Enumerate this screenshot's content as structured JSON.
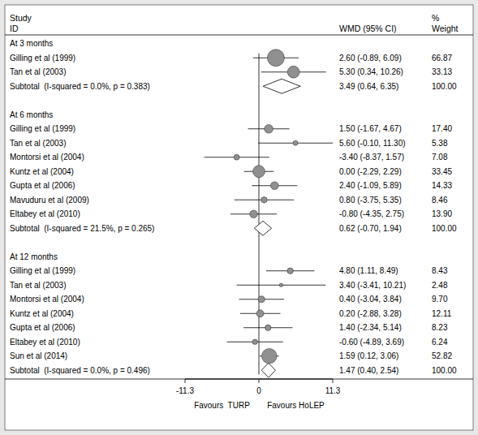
{
  "chart_data": {
    "type": "forest",
    "header_study": "Study",
    "header_id": "ID",
    "header_percent": "%",
    "col_wmd_label": "WMD (95% CI)",
    "col_weight_label": "Weight",
    "xlim": [
      -11.3,
      11.3
    ],
    "xticks": [
      -11.3,
      0,
      11.3
    ],
    "reference_line": 0,
    "xlabel_left": "Favours  TURP",
    "xlabel_right": "Favours HoLEP",
    "dot_color": "#909090",
    "diamond_color": "#ffffff",
    "diamond_edge_color": "#000000",
    "background_color": "#e8e8e8",
    "plot_bg_color": "#ffffff",
    "groups": [
      {
        "label": "At 3 months",
        "studies": [
          {
            "name": "Gilling et al (1999)",
            "wmd": 2.6,
            "ci_low": -0.89,
            "ci_high": 6.09,
            "weight": 66.87,
            "wmd_label": "2.60 (-0.89, 6.09)",
            "weight_label": "66.87"
          },
          {
            "name": "Tan et al (2003)",
            "wmd": 5.3,
            "ci_low": 0.34,
            "ci_high": 10.26,
            "weight": 33.13,
            "wmd_label": "5.30 (0.34, 10.26)",
            "weight_label": "33.13"
          }
        ],
        "subtotal": {
          "label": "Subtotal  (I-squared = 0.0%, p = 0.383)",
          "wmd": 3.49,
          "ci_low": 0.64,
          "ci_high": 6.35,
          "weight": 100,
          "wmd_label": "3.49 (0.64, 6.35)",
          "weight_label": "100.00"
        }
      },
      {
        "label": "At 6 months",
        "studies": [
          {
            "name": "Gilling et al (1999)",
            "wmd": 1.5,
            "ci_low": -1.67,
            "ci_high": 4.67,
            "weight": 17.4,
            "wmd_label": "1.50 (-1.67, 4.67)",
            "weight_label": "17.40"
          },
          {
            "name": "Tan et al (2003)",
            "wmd": 5.6,
            "ci_low": -0.1,
            "ci_high": 11.3,
            "weight": 5.38,
            "wmd_label": "5.60 (-0.10, 11.30)",
            "weight_label": "5.38"
          },
          {
            "name": "Montorsi et al (2004)",
            "wmd": -3.4,
            "ci_low": -8.37,
            "ci_high": 1.57,
            "weight": 7.08,
            "wmd_label": "-3.40 (-8.37, 1.57)",
            "weight_label": "7.08"
          },
          {
            "name": "Kuntz et al (2004)",
            "wmd": 0.0,
            "ci_low": -2.29,
            "ci_high": 2.29,
            "weight": 33.45,
            "wmd_label": "0.00 (-2.29, 2.29)",
            "weight_label": "33.45"
          },
          {
            "name": "Gupta et al (2006)",
            "wmd": 2.4,
            "ci_low": -1.09,
            "ci_high": 5.89,
            "weight": 14.33,
            "wmd_label": "2.40 (-1.09, 5.89)",
            "weight_label": "14.33"
          },
          {
            "name": "Mavuduru et al (2009)",
            "wmd": 0.8,
            "ci_low": -3.75,
            "ci_high": 5.35,
            "weight": 8.46,
            "wmd_label": "0.80 (-3.75, 5.35)",
            "weight_label": "8.46"
          },
          {
            "name": "Eltabey et al (2010)",
            "wmd": -0.8,
            "ci_low": -4.35,
            "ci_high": 2.75,
            "weight": 13.9,
            "wmd_label": "-0.80 (-4.35, 2.75)",
            "weight_label": "13.90"
          }
        ],
        "subtotal": {
          "label": "Subtotal  (I-squared = 21.5%, p = 0.265)",
          "wmd": 0.62,
          "ci_low": -0.7,
          "ci_high": 1.94,
          "weight": 100,
          "wmd_label": "0.62 (-0.70, 1.94)",
          "weight_label": "100.00"
        }
      },
      {
        "label": "At 12 months",
        "studies": [
          {
            "name": "Gilling et al (1999)",
            "wmd": 4.8,
            "ci_low": 1.11,
            "ci_high": 8.49,
            "weight": 8.43,
            "wmd_label": "4.80 (1.11, 8.49)",
            "weight_label": "8.43"
          },
          {
            "name": "Tan et al (2003)",
            "wmd": 3.4,
            "ci_low": -3.41,
            "ci_high": 10.21,
            "weight": 2.48,
            "wmd_label": "3.40 (-3.41, 10.21)",
            "weight_label": "2.48"
          },
          {
            "name": "Montorsi et al (2004)",
            "wmd": 0.4,
            "ci_low": -3.04,
            "ci_high": 3.84,
            "weight": 9.7,
            "wmd_label": "0.40 (-3.04, 3.84)",
            "weight_label": "9.70"
          },
          {
            "name": "Kuntz et al (2004)",
            "wmd": 0.2,
            "ci_low": -2.88,
            "ci_high": 3.28,
            "weight": 12.11,
            "wmd_label": "0.20 (-2.88, 3.28)",
            "weight_label": "12.11"
          },
          {
            "name": "Gupta et al (2006)",
            "wmd": 1.4,
            "ci_low": -2.34,
            "ci_high": 5.14,
            "weight": 8.23,
            "wmd_label": "1.40 (-2.34, 5.14)",
            "weight_label": "8.23"
          },
          {
            "name": "Eltabey et al (2010)",
            "wmd": -0.6,
            "ci_low": -4.89,
            "ci_high": 3.69,
            "weight": 6.24,
            "wmd_label": "-0.60 (-4.89, 3.69)",
            "weight_label": "6.24"
          },
          {
            "name": "Sun et al (2014)",
            "wmd": 1.59,
            "ci_low": 0.12,
            "ci_high": 3.06,
            "weight": 52.82,
            "wmd_label": "1.59 (0.12, 3.06)",
            "weight_label": "52.82"
          }
        ],
        "subtotal": {
          "label": "Subtotal  (I-squared = 0.0%, p = 0.496)",
          "wmd": 1.47,
          "ci_low": 0.4,
          "ci_high": 2.54,
          "weight": 100,
          "wmd_label": "1.47 (0.40, 2.54)",
          "weight_label": "100.00"
        }
      }
    ]
  }
}
